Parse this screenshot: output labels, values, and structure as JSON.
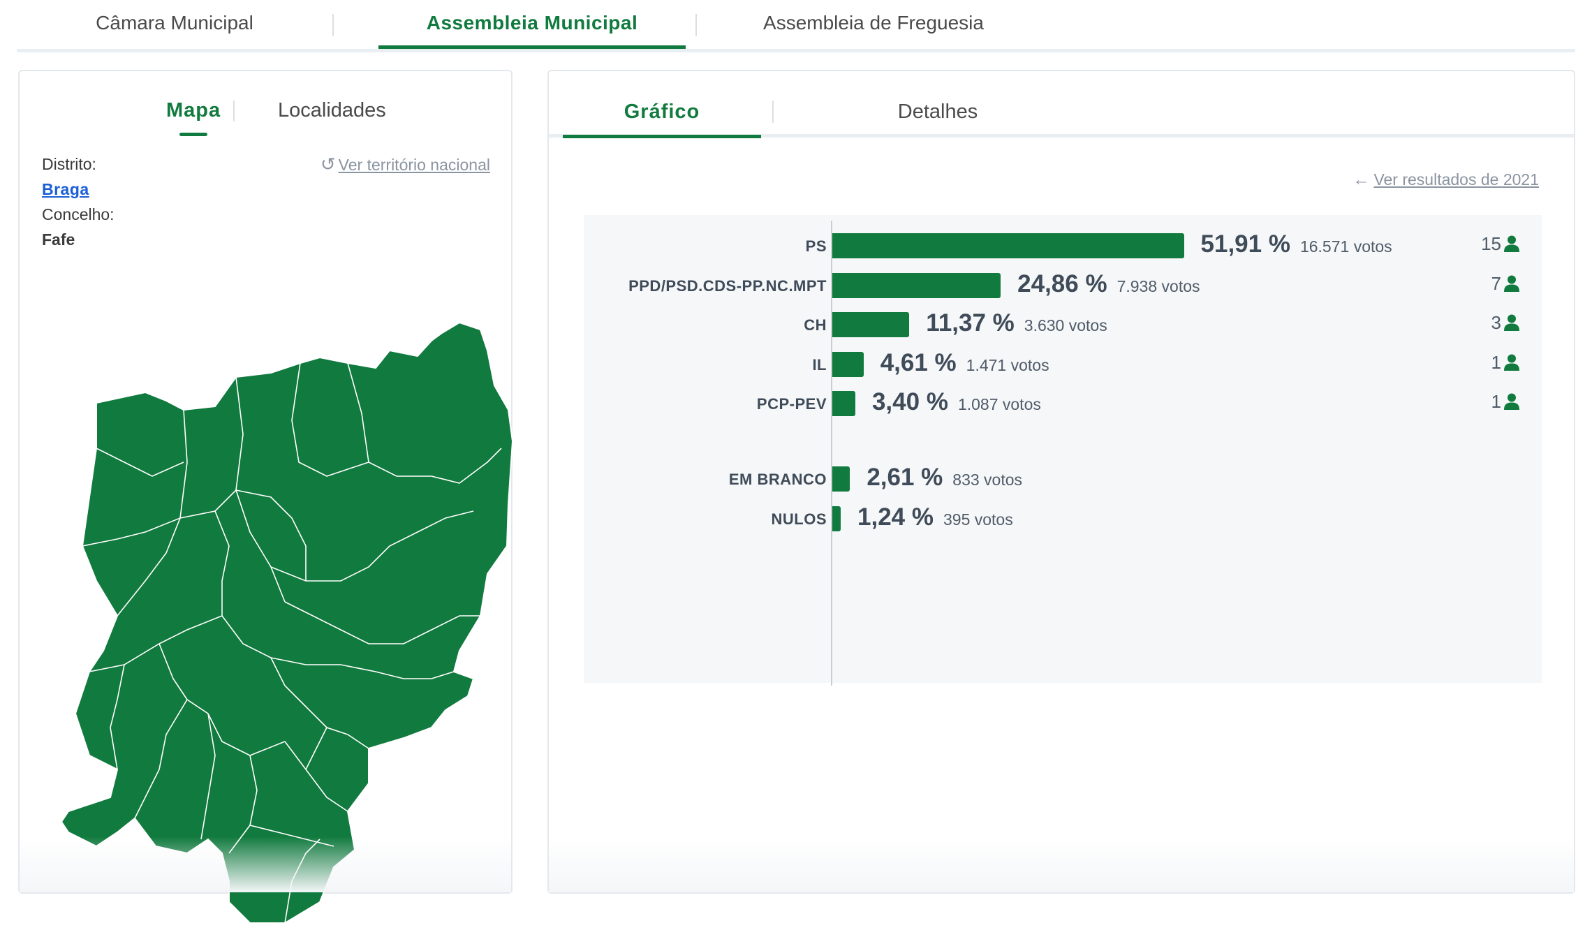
{
  "top_tabs": {
    "camara": "Câmara Municipal",
    "assembleia": "Assembleia Municipal",
    "freguesia": "Assembleia de Freguesia"
  },
  "left": {
    "tabs": {
      "mapa": "Mapa",
      "localidades": "Localidades"
    },
    "distrito_label": "Distrito:",
    "distrito_value": "Braga",
    "concelho_label": "Concelho:",
    "concelho_value": "Fafe",
    "reset_link": "Ver território nacional",
    "map_color": "#117a3e"
  },
  "right": {
    "tabs": {
      "grafico": "Gráfico",
      "detalhes": "Detalhes"
    },
    "back_link": "Ver resultados de 2021",
    "accent": "#117a3e"
  },
  "chart_data": {
    "type": "bar",
    "orientation": "horizontal",
    "series": [
      {
        "name": "PS",
        "percent": 51.91,
        "percent_label": "51,91 %",
        "votes": "16.571 votos",
        "seats": "15"
      },
      {
        "name": "PPD/PSD.CDS-PP.NC.MPT",
        "percent": 24.86,
        "percent_label": "24,86 %",
        "votes": "7.938 votos",
        "seats": "7"
      },
      {
        "name": "CH",
        "percent": 11.37,
        "percent_label": "11,37 %",
        "votes": "3.630 votos",
        "seats": "3"
      },
      {
        "name": "IL",
        "percent": 4.61,
        "percent_label": "4,61 %",
        "votes": "1.471 votos",
        "seats": "1"
      },
      {
        "name": "PCP-PEV",
        "percent": 3.4,
        "percent_label": "3,40 %",
        "votes": "1.087 votos",
        "seats": "1"
      }
    ],
    "other": [
      {
        "name": "EM BRANCO",
        "percent": 2.61,
        "percent_label": "2,61 %",
        "votes": "833 votos"
      },
      {
        "name": "NULOS",
        "percent": 1.24,
        "percent_label": "1,24 %",
        "votes": "395 votos"
      }
    ]
  }
}
